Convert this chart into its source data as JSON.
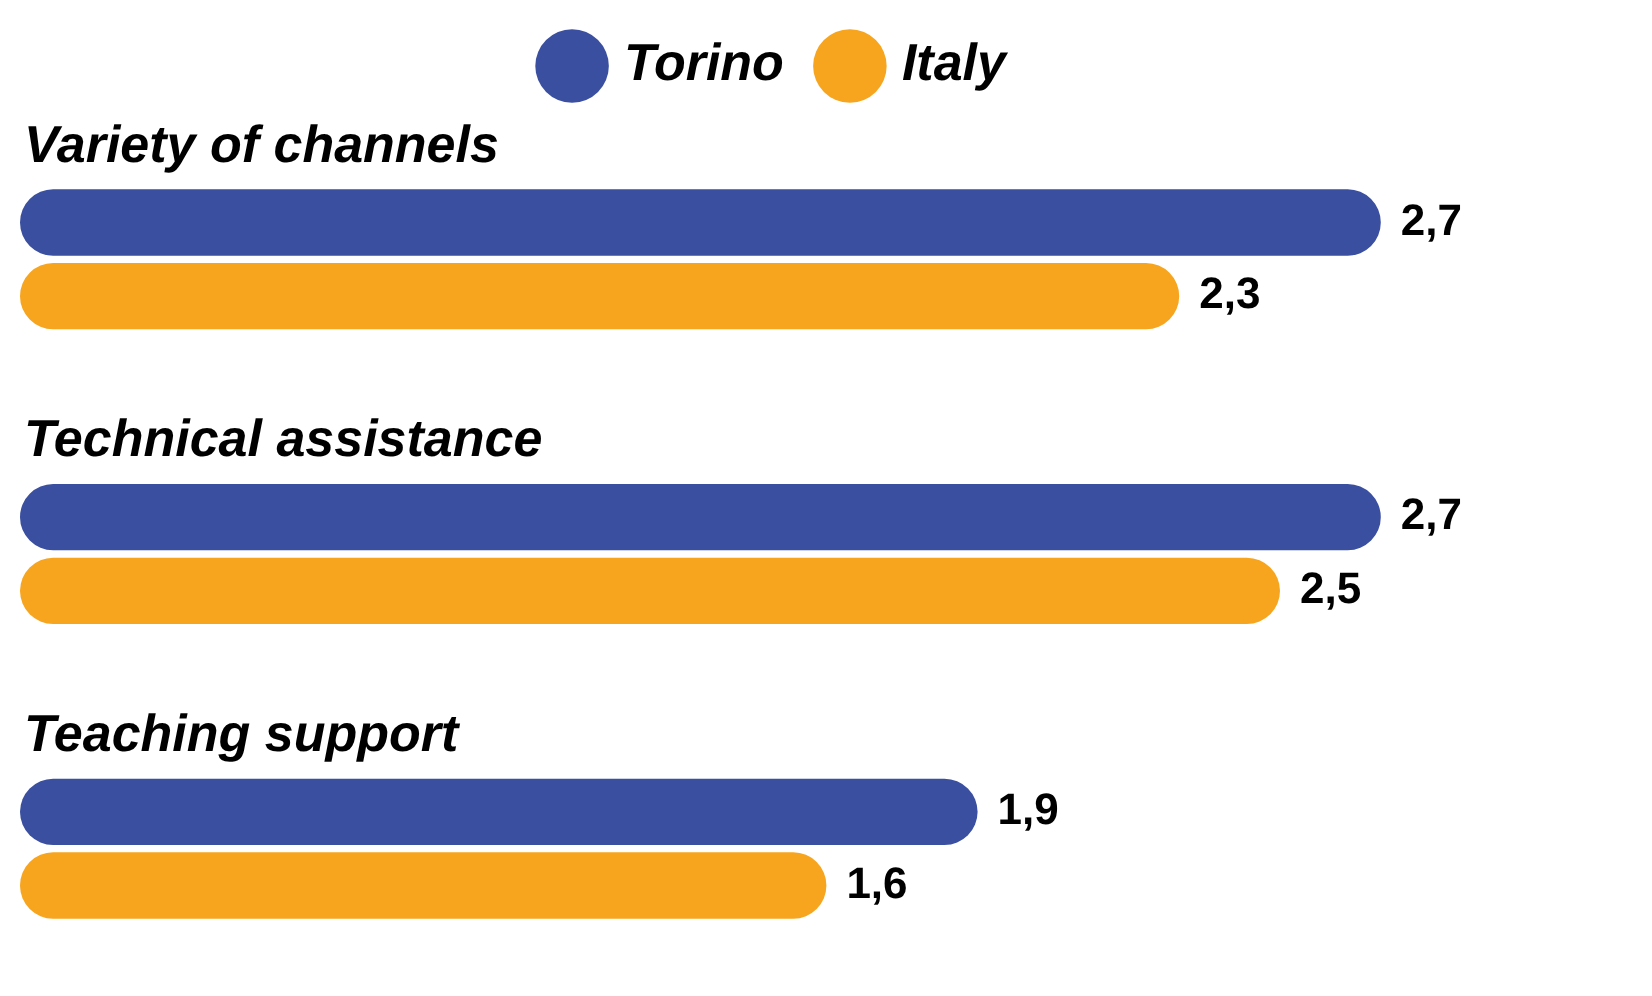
{
  "chart_data": {
    "type": "bar",
    "orientation": "horizontal",
    "categories": [
      "Variety of channels",
      "Technical assistance",
      "Teaching support"
    ],
    "series": [
      {
        "name": "Torino",
        "color": "#3a4fa0",
        "values": [
          2.7,
          2.7,
          1.9
        ],
        "value_labels": [
          "2,7",
          "2,7",
          "1,9"
        ]
      },
      {
        "name": "Italy",
        "color": "#f7a51e",
        "values": [
          2.3,
          2.5,
          1.6
        ],
        "value_labels": [
          "2,3",
          "2,5",
          "1,6"
        ]
      }
    ],
    "legend": "top"
  }
}
